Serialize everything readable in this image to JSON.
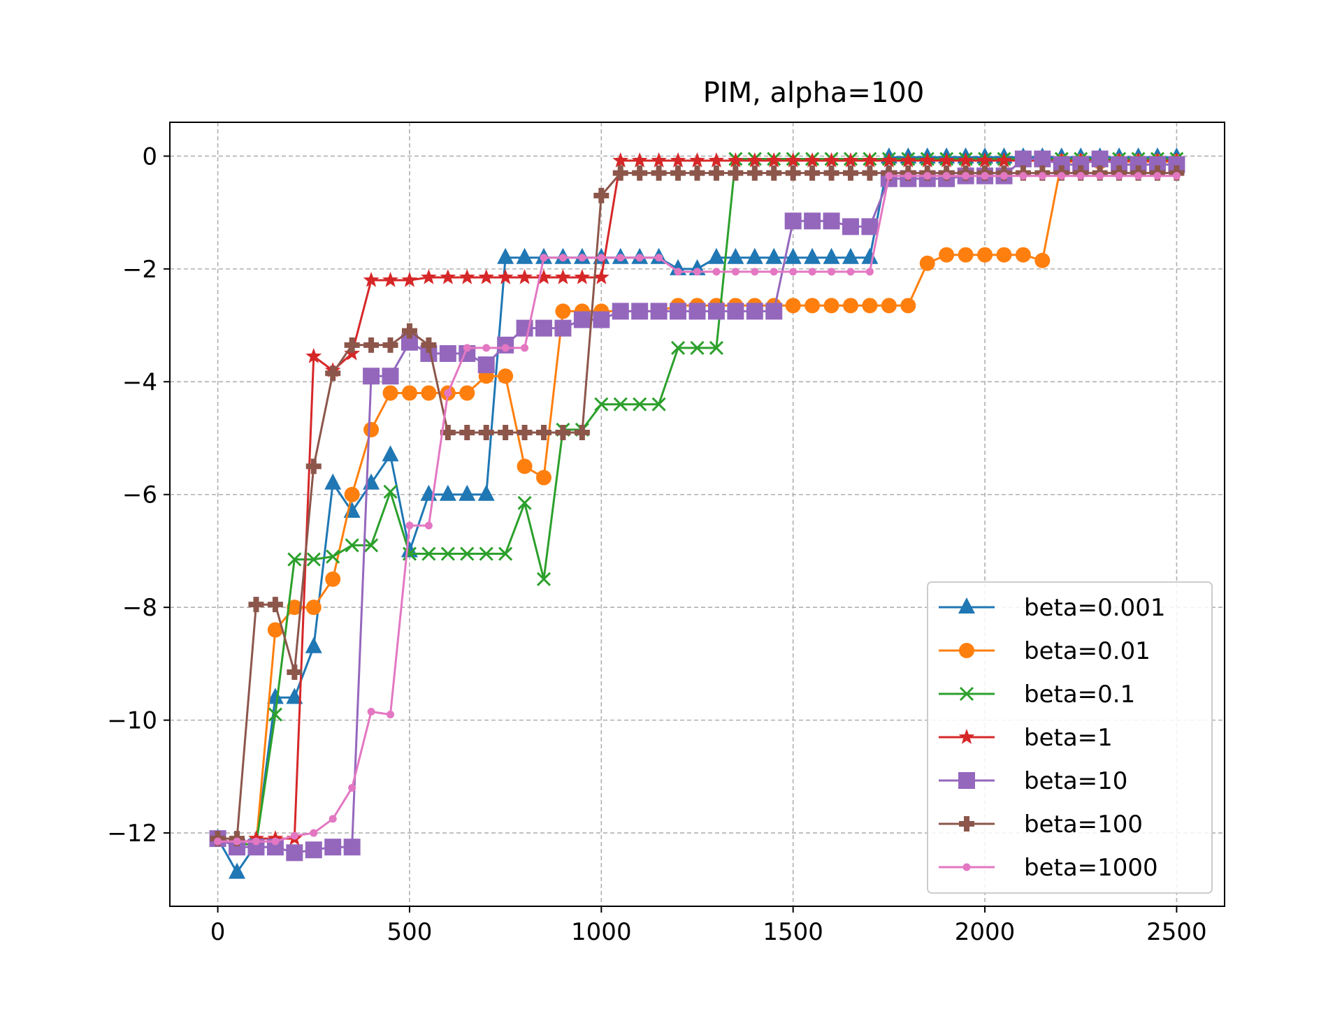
{
  "chart_data": {
    "type": "line",
    "title": "PIM, alpha=100",
    "xlabel": "",
    "ylabel": "",
    "xlim": [
      -125,
      2625
    ],
    "ylim": [
      -13.3,
      0.6
    ],
    "xticks": [
      0,
      500,
      1000,
      1500,
      2000,
      2500
    ],
    "yticks": [
      0,
      -2,
      -4,
      -6,
      -8,
      -10,
      -12
    ],
    "xtick_labels": [
      "0",
      "500",
      "1000",
      "1500",
      "2000",
      "2500"
    ],
    "ytick_labels": [
      "0",
      "−2",
      "−4",
      "−6",
      "−8",
      "−10",
      "−12"
    ],
    "grid": true,
    "legend_position": "lower-right",
    "x": [
      0,
      50,
      100,
      150,
      200,
      250,
      300,
      350,
      400,
      450,
      500,
      550,
      600,
      650,
      700,
      750,
      800,
      850,
      900,
      950,
      1000,
      1050,
      1100,
      1150,
      1200,
      1250,
      1300,
      1350,
      1400,
      1450,
      1500,
      1550,
      1600,
      1650,
      1700,
      1750,
      1800,
      1850,
      1900,
      1950,
      2000,
      2050,
      2100,
      2150,
      2200,
      2250,
      2300,
      2350,
      2400,
      2450,
      2500
    ],
    "series": [
      {
        "name": "beta=0.001",
        "color": "#1f77b4",
        "marker": "triangle",
        "values": [
          -12.1,
          -12.7,
          -12.2,
          -9.6,
          -9.6,
          -8.7,
          -5.8,
          -6.3,
          -5.8,
          -5.3,
          -7.0,
          -6.0,
          -6.0,
          -6.0,
          -6.0,
          -1.8,
          -1.8,
          -1.8,
          -1.8,
          -1.8,
          -1.8,
          -1.8,
          -1.8,
          -1.8,
          -2.0,
          -2.0,
          -1.8,
          -1.8,
          -1.8,
          -1.8,
          -1.8,
          -1.8,
          -1.8,
          -1.8,
          -1.8,
          -0.02,
          -0.02,
          -0.02,
          -0.02,
          -0.02,
          -0.02,
          -0.02,
          -0.02,
          -0.02,
          -0.02,
          -0.02,
          -0.02,
          -0.02,
          -0.02,
          -0.02,
          -0.02
        ]
      },
      {
        "name": "beta=0.01",
        "color": "#ff7f0e",
        "marker": "circle",
        "values": [
          -12.1,
          -12.2,
          -12.2,
          -8.4,
          -8.0,
          -8.0,
          -7.5,
          -6.0,
          -4.85,
          -4.2,
          -4.2,
          -4.2,
          -4.2,
          -4.2,
          -3.9,
          -3.9,
          -5.5,
          -5.7,
          -2.75,
          -2.75,
          -2.75,
          -2.75,
          -2.75,
          -2.75,
          -2.65,
          -2.65,
          -2.65,
          -2.65,
          -2.65,
          -2.65,
          -2.65,
          -2.65,
          -2.65,
          -2.65,
          -2.65,
          -2.65,
          -2.65,
          -1.9,
          -1.75,
          -1.75,
          -1.75,
          -1.75,
          -1.75,
          -1.85,
          -0.1,
          -0.1,
          -0.1,
          -0.1,
          -0.1,
          -0.1,
          -0.1
        ]
      },
      {
        "name": "beta=0.1",
        "color": "#2ca02c",
        "marker": "x",
        "values": [
          -12.1,
          -12.2,
          -12.2,
          -9.9,
          -7.15,
          -7.15,
          -7.1,
          -6.9,
          -6.9,
          -5.95,
          -7.05,
          -7.05,
          -7.05,
          -7.05,
          -7.05,
          -7.05,
          -6.15,
          -7.5,
          -4.85,
          -4.85,
          -4.4,
          -4.4,
          -4.4,
          -4.4,
          -3.4,
          -3.4,
          -3.4,
          -0.05,
          -0.05,
          -0.05,
          -0.05,
          -0.05,
          -0.05,
          -0.05,
          -0.05,
          -0.05,
          -0.05,
          -0.05,
          -0.05,
          -0.05,
          -0.05,
          -0.05,
          -0.05,
          -0.05,
          -0.05,
          -0.05,
          -0.05,
          -0.05,
          -0.05,
          -0.05,
          -0.05
        ]
      },
      {
        "name": "beta=1",
        "color": "#d62728",
        "marker": "star",
        "values": [
          -12.1,
          -12.2,
          -12.1,
          -12.1,
          -12.1,
          -3.55,
          -3.8,
          -3.5,
          -2.2,
          -2.2,
          -2.2,
          -2.15,
          -2.15,
          -2.15,
          -2.15,
          -2.15,
          -2.15,
          -2.15,
          -2.15,
          -2.15,
          -2.15,
          -0.08,
          -0.08,
          -0.08,
          -0.08,
          -0.08,
          -0.08,
          -0.08,
          -0.08,
          -0.08,
          -0.08,
          -0.08,
          -0.08,
          -0.08,
          -0.08,
          -0.08,
          -0.08,
          -0.08,
          -0.08,
          -0.08,
          -0.08,
          -0.08,
          -0.08,
          -0.08,
          -0.08,
          -0.08,
          -0.08,
          -0.08,
          -0.08,
          -0.08,
          -0.08
        ]
      },
      {
        "name": "beta=10",
        "color": "#9467bd",
        "marker": "square",
        "values": [
          -12.1,
          -12.25,
          -12.25,
          -12.25,
          -12.35,
          -12.3,
          -12.25,
          -12.25,
          -3.9,
          -3.9,
          -3.3,
          -3.5,
          -3.5,
          -3.5,
          -3.7,
          -3.35,
          -3.05,
          -3.05,
          -3.05,
          -2.9,
          -2.9,
          -2.75,
          -2.75,
          -2.75,
          -2.75,
          -2.75,
          -2.75,
          -2.75,
          -2.75,
          -2.75,
          -1.15,
          -1.15,
          -1.15,
          -1.25,
          -1.25,
          -0.4,
          -0.4,
          -0.4,
          -0.4,
          -0.35,
          -0.35,
          -0.35,
          -0.05,
          -0.05,
          -0.15,
          -0.15,
          -0.05,
          -0.15,
          -0.15,
          -0.15,
          -0.15
        ]
      },
      {
        "name": "beta=100",
        "color": "#8c564b",
        "marker": "plus",
        "values": [
          -12.1,
          -12.1,
          -7.95,
          -7.95,
          -9.15,
          -5.5,
          -3.85,
          -3.35,
          -3.35,
          -3.35,
          -3.1,
          -3.35,
          -4.9,
          -4.9,
          -4.9,
          -4.9,
          -4.9,
          -4.9,
          -4.9,
          -4.9,
          -0.7,
          -0.3,
          -0.3,
          -0.3,
          -0.3,
          -0.3,
          -0.3,
          -0.3,
          -0.3,
          -0.3,
          -0.3,
          -0.3,
          -0.3,
          -0.3,
          -0.3,
          -0.3,
          -0.3,
          -0.3,
          -0.3,
          -0.3,
          -0.3,
          -0.3,
          -0.3,
          -0.3,
          -0.3,
          -0.3,
          -0.3,
          -0.3,
          -0.3,
          -0.3,
          -0.3
        ]
      },
      {
        "name": "beta=1000",
        "color": "#e377c2",
        "marker": "point",
        "values": [
          -12.15,
          -12.15,
          -12.15,
          -12.15,
          -12.05,
          -12.0,
          -11.75,
          -11.2,
          -9.85,
          -9.9,
          -6.55,
          -6.55,
          -4.2,
          -3.4,
          -3.4,
          -3.4,
          -3.4,
          -1.8,
          -1.8,
          -1.8,
          -1.8,
          -1.8,
          -1.8,
          -1.8,
          -2.05,
          -2.05,
          -2.05,
          -2.05,
          -2.05,
          -2.05,
          -2.05,
          -2.05,
          -2.05,
          -2.05,
          -2.05,
          -0.35,
          -0.35,
          -0.35,
          -0.35,
          -0.35,
          -0.35,
          -0.35,
          -0.35,
          -0.35,
          -0.35,
          -0.35,
          -0.35,
          -0.35,
          -0.35,
          -0.35,
          -0.35
        ]
      }
    ]
  }
}
